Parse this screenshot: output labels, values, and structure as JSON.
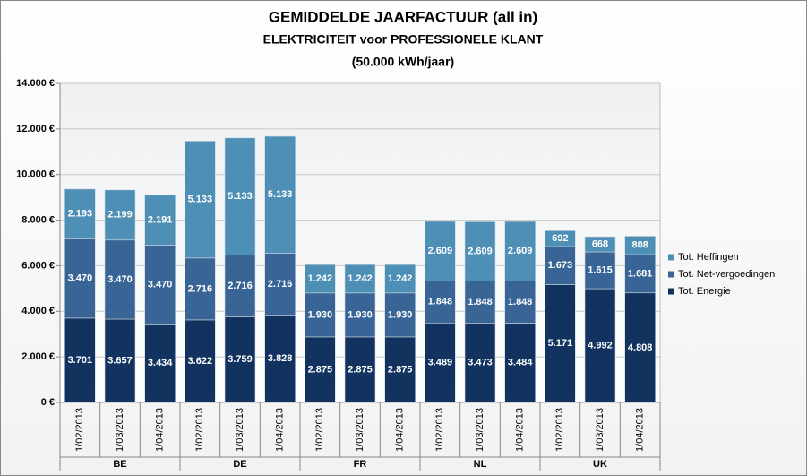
{
  "chart_data": {
    "type": "stacked-bar",
    "title": "GEMIDDELDE JAARFACTUUR (all in)",
    "subtitle": [
      "ELEKTRICITEIT voor PROFESSIONELE KLANT",
      "(50.000 kWh/jaar)"
    ],
    "categories": [
      "1/02/2013",
      "1/03/2013",
      "1/04/2013",
      "1/02/2013",
      "1/03/2013",
      "1/04/2013",
      "1/02/2013",
      "1/03/2013",
      "1/04/2013",
      "1/02/2013",
      "1/03/2013",
      "1/04/2013",
      "1/02/2013",
      "1/03/2013",
      "1/04/2013"
    ],
    "groups": [
      "BE",
      "DE",
      "FR",
      "NL",
      "UK"
    ],
    "series": [
      {
        "name": "Tot. Energie",
        "color": "#12335f",
        "values": [
          3701,
          3657,
          3434,
          3622,
          3759,
          3828,
          2875,
          2875,
          2875,
          3489,
          3473,
          3484,
          5171,
          4992,
          4808
        ],
        "value_labels": [
          "3.701",
          "3.657",
          "3.434",
          "3.622",
          "3.759",
          "3.828",
          "2.875",
          "2.875",
          "2.875",
          "3.489",
          "3.473",
          "3.484",
          "5.171",
          "4.992",
          "4.808"
        ]
      },
      {
        "name": "Tot. Net-vergoedingen",
        "color": "#386595",
        "values": [
          3470,
          3470,
          3470,
          2716,
          2716,
          2716,
          1930,
          1930,
          1930,
          1848,
          1848,
          1848,
          1673,
          1615,
          1681
        ],
        "value_labels": [
          "3.470",
          "3.470",
          "3.470",
          "2.716",
          "2.716",
          "2.716",
          "1.930",
          "1.930",
          "1.930",
          "1.848",
          "1.848",
          "1.848",
          "1.673",
          "1.615",
          "1.681"
        ]
      },
      {
        "name": "Tot. Heffingen",
        "color": "#4e8fb5",
        "values": [
          2193,
          2199,
          2191,
          5133,
          5133,
          5133,
          1242,
          1242,
          1242,
          2609,
          2609,
          2609,
          692,
          668,
          808
        ],
        "value_labels": [
          "2.193",
          "2.199",
          "2.191",
          "5.133",
          "5.133",
          "5.133",
          "1.242",
          "1.242",
          "1.242",
          "2.609",
          "2.609",
          "2.609",
          "692",
          "668",
          "808"
        ]
      }
    ],
    "ylim": [
      0,
      14000
    ],
    "yticks": [
      {
        "value": 0,
        "label": "0 €"
      },
      {
        "value": 2000,
        "label": "2.000 €"
      },
      {
        "value": 4000,
        "label": "4.000 €"
      },
      {
        "value": 6000,
        "label": "6.000 €"
      },
      {
        "value": 8000,
        "label": "8.000 €"
      },
      {
        "value": 10000,
        "label": "10.000 €"
      },
      {
        "value": 12000,
        "label": "12.000 €"
      },
      {
        "value": 14000,
        "label": "14.000 €"
      }
    ],
    "grid": true,
    "legend": "right"
  }
}
